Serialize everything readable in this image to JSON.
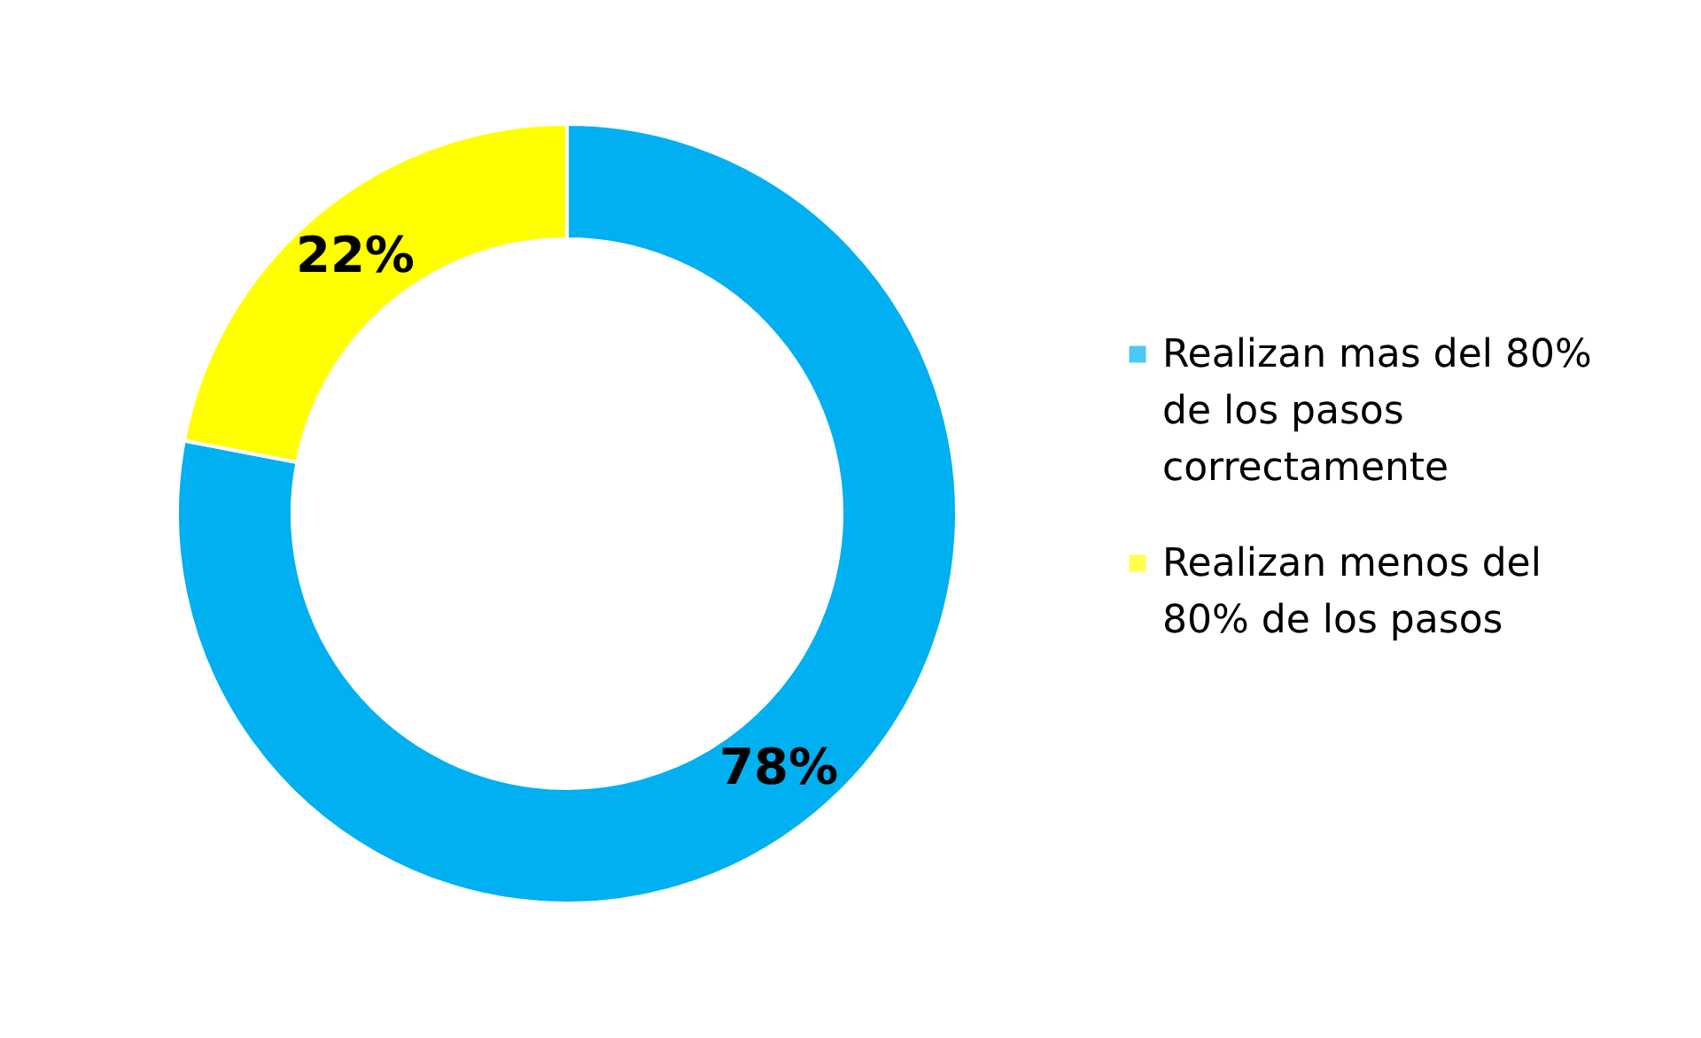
{
  "chart_data": {
    "type": "donut",
    "categories": [
      "Realizan mas del 80% de los pasos correctamente",
      "Realizan menos del 80% de los pasos"
    ],
    "values": [
      78,
      22
    ],
    "colors": [
      "#00b0f0",
      "#ffff00"
    ],
    "value_labels": [
      "78%",
      "22%"
    ],
    "legend": "right"
  }
}
